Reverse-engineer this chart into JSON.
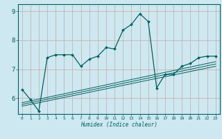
{
  "title": "",
  "xlabel": "Humidex (Indice chaleur)",
  "bg_color": "#cde8f0",
  "grid_color": "#b0c8d0",
  "line_color": "#006060",
  "spine_color": "#006060",
  "xlim": [
    -0.5,
    23.5
  ],
  "ylim": [
    5.45,
    9.25
  ],
  "yticks": [
    6,
    7,
    8,
    9
  ],
  "xticks": [
    0,
    1,
    2,
    3,
    4,
    5,
    6,
    7,
    8,
    9,
    10,
    11,
    12,
    13,
    14,
    15,
    16,
    17,
    18,
    19,
    20,
    21,
    22,
    23
  ],
  "main_x": [
    0,
    1,
    2,
    3,
    4,
    5,
    6,
    7,
    8,
    9,
    10,
    11,
    12,
    13,
    14,
    15,
    16,
    17,
    18,
    19,
    20,
    21,
    22,
    23
  ],
  "main_y": [
    6.3,
    5.95,
    5.55,
    7.4,
    7.5,
    7.5,
    7.5,
    7.1,
    7.35,
    7.45,
    7.75,
    7.7,
    8.35,
    8.55,
    8.92,
    8.65,
    6.35,
    6.82,
    6.82,
    7.1,
    7.2,
    7.4,
    7.45,
    7.45
  ],
  "reg_lines": [
    {
      "x": [
        0,
        23
      ],
      "y": [
        5.72,
        7.1
      ]
    },
    {
      "x": [
        0,
        23
      ],
      "y": [
        5.78,
        7.18
      ]
    },
    {
      "x": [
        0,
        23
      ],
      "y": [
        5.84,
        7.26
      ]
    }
  ]
}
